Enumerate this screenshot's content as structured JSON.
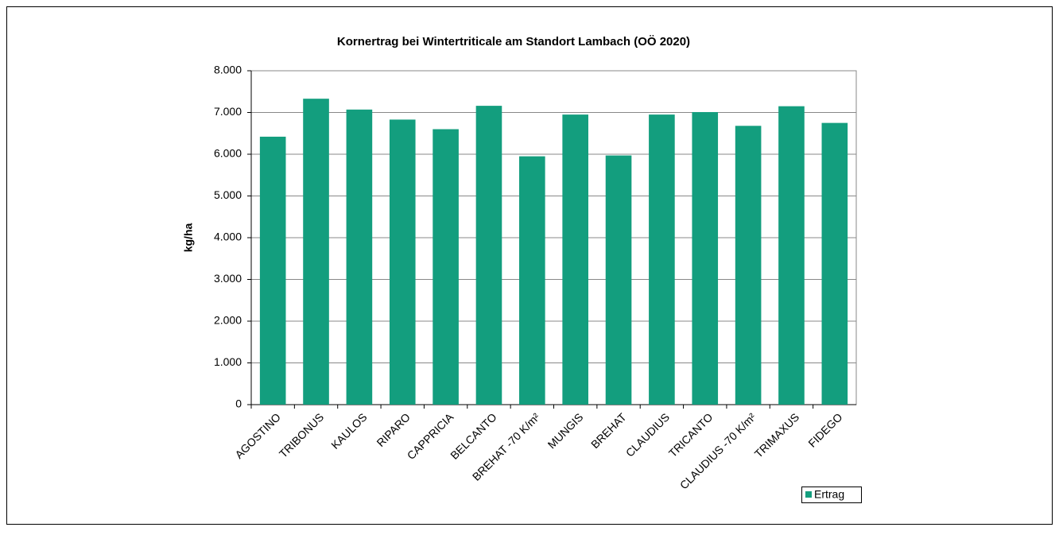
{
  "chart_data": {
    "type": "bar",
    "title": "Kornertrag bei Wintertriticale am Standort Lambach (OÖ 2020)",
    "y_label": "kg/ha",
    "categories": [
      "AGOSTINO",
      "TRIBONUS",
      "KAULOS",
      "RIPARO",
      "CAPPRICIA",
      "BELCANTO",
      "BREHAT -70 K/m²",
      "MUNGIS",
      "BREHAT",
      "CLAUDIUS",
      "TRICANTO",
      "CLAUDIUS -70 K/m²",
      "TRIMAXUS",
      "FIDEGO"
    ],
    "series": [
      {
        "name": "Ertrag",
        "color": "#139e7e",
        "values": [
          6420,
          7330,
          7070,
          6830,
          6600,
          7160,
          5950,
          6950,
          5970,
          6950,
          7010,
          6680,
          7150,
          6750
        ]
      }
    ],
    "ylim": [
      0,
      8000
    ],
    "yticks": [
      0,
      {
        "value": 1000,
        "label": "1.000"
      },
      {
        "value": 2000,
        "label": "2.000"
      },
      {
        "value": 3000,
        "label": "3.000"
      },
      {
        "value": 4000,
        "label": "4.000"
      },
      {
        "value": 5000,
        "label": "5.000"
      },
      {
        "value": 6000,
        "label": "6.000"
      },
      {
        "value": 7000,
        "label": "7.000"
      },
      {
        "value": 8000,
        "label": "8.000"
      }
    ],
    "grid": true,
    "legend": "lower right"
  }
}
